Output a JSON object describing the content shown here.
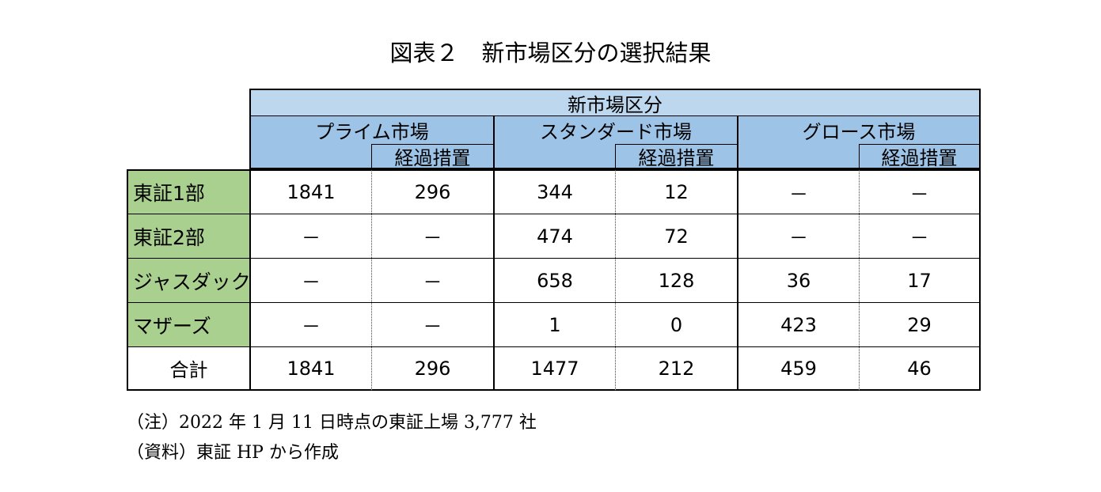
{
  "title": "図表２　新市場区分の選択結果",
  "chart_data": {
    "type": "table",
    "group_header": "新市場区分",
    "markets": [
      {
        "name": "プライム市場",
        "sub": "経過措置"
      },
      {
        "name": "スタンダード市場",
        "sub": "経過措置"
      },
      {
        "name": "グロース市場",
        "sub": "経過措置"
      }
    ],
    "rows": [
      {
        "label": "東証1部",
        "values": [
          "1841",
          "296",
          "344",
          "12",
          "－",
          "－"
        ]
      },
      {
        "label": "東証2部",
        "values": [
          "－",
          "－",
          "474",
          "72",
          "－",
          "－"
        ]
      },
      {
        "label": "ジャスダック",
        "values": [
          "－",
          "－",
          "658",
          "128",
          "36",
          "17"
        ]
      },
      {
        "label": "マザーズ",
        "values": [
          "－",
          "－",
          "1",
          "0",
          "423",
          "29"
        ]
      },
      {
        "label": "合計",
        "values": [
          "1841",
          "296",
          "1477",
          "212",
          "459",
          "46"
        ]
      }
    ]
  },
  "notes": [
    "（注）2022 年 1 月 11 日時点の東証上場 3,777 社",
    "（資料）東証 HP から作成"
  ],
  "colors": {
    "header_top": "#bdd7ee",
    "header": "#9dc3e6",
    "row_label": "#a9d08e"
  }
}
